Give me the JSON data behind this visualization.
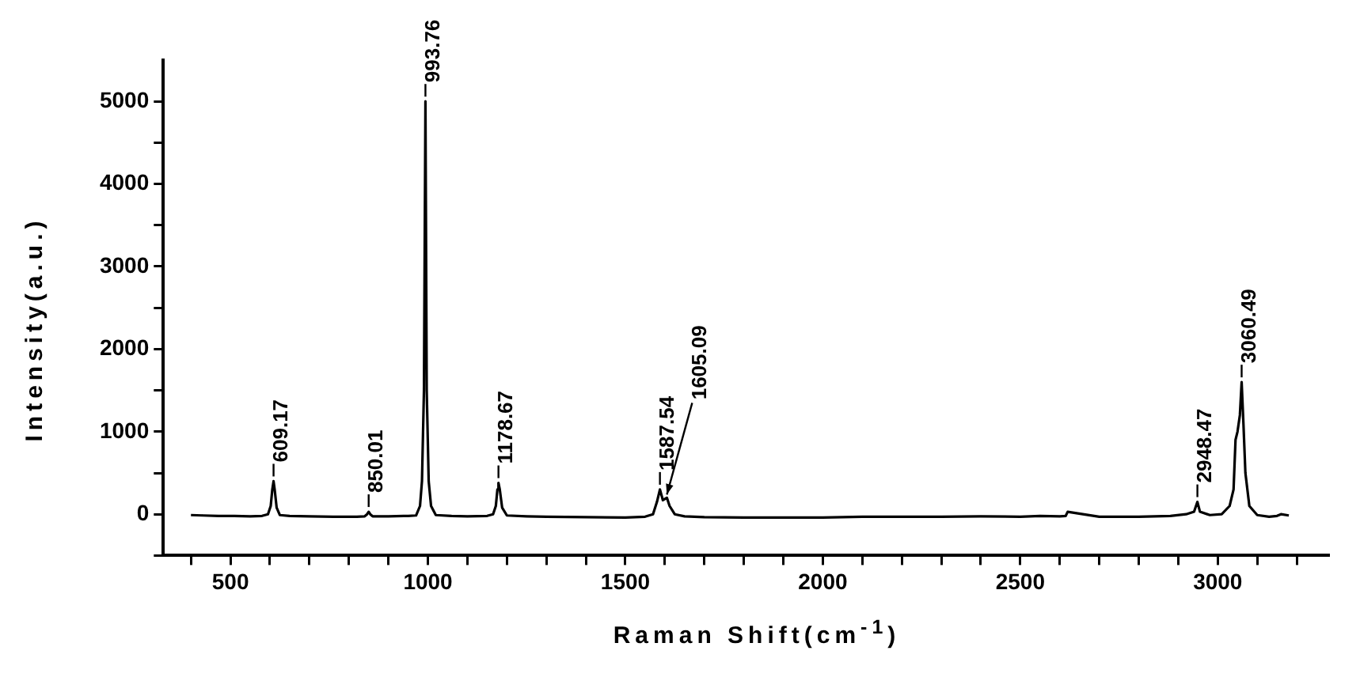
{
  "chart_data": {
    "type": "line",
    "xlabel": "Raman Shift(cm$^{-1}$)",
    "ylabel": "Intensity(a.u.)",
    "xlim": [
      330,
      3280
    ],
    "ylim": [
      -500,
      5500
    ],
    "xticks": [
      {
        "value": 400,
        "label": null
      },
      500,
      {
        "value": 600,
        "label": null
      },
      {
        "value": 700,
        "label": null
      },
      {
        "value": 800,
        "label": null
      },
      {
        "value": 900,
        "label": null
      },
      1000,
      {
        "value": 1100,
        "label": null
      },
      {
        "value": 1200,
        "label": null
      },
      {
        "value": 1300,
        "label": null
      },
      {
        "value": 1400,
        "label": null
      },
      1500,
      {
        "value": 1600,
        "label": null
      },
      {
        "value": 1700,
        "label": null
      },
      {
        "value": 1800,
        "label": null
      },
      {
        "value": 1900,
        "label": null
      },
      2000,
      {
        "value": 2100,
        "label": null
      },
      {
        "value": 2200,
        "label": null
      },
      {
        "value": 2300,
        "label": null
      },
      {
        "value": 2400,
        "label": null
      },
      2500,
      {
        "value": 2600,
        "label": null
      },
      {
        "value": 2700,
        "label": null
      },
      {
        "value": 2800,
        "label": null
      },
      {
        "value": 2900,
        "label": null
      },
      3000,
      {
        "value": 3100,
        "label": null
      },
      {
        "value": 3200,
        "label": null
      }
    ],
    "yticks": [
      {
        "value": -500,
        "label": null
      },
      0,
      {
        "value": 500,
        "label": null
      },
      1000,
      {
        "value": 1500,
        "label": null
      },
      2000,
      {
        "value": 2500,
        "label": null
      },
      3000,
      {
        "value": 3500,
        "label": null
      },
      4000,
      {
        "value": 4500,
        "label": null
      },
      5000
    ],
    "grid": false,
    "legend": false,
    "marker": "none",
    "line_style": "solid",
    "series": [
      {
        "color": "#000000",
        "x": [
          400,
          430,
          470,
          510,
          550,
          580,
          595,
          602,
          606,
          609.17,
          612,
          617,
          625,
          650,
          700,
          760,
          820,
          840,
          846,
          850.01,
          854,
          860,
          900,
          950,
          970,
          980,
          985,
          990,
          993.76,
          997,
          1002,
          1008,
          1020,
          1060,
          1100,
          1150,
          1165,
          1172,
          1176,
          1178.67,
          1182,
          1188,
          1200,
          1250,
          1300,
          1400,
          1500,
          1550,
          1570,
          1580,
          1587.54,
          1595,
          1605.09,
          1612,
          1625,
          1650,
          1700,
          1800,
          1900,
          2000,
          2100,
          2200,
          2300,
          2400,
          2500,
          2550,
          2600,
          2615,
          2620,
          2700,
          2800,
          2880,
          2920,
          2940,
          2948.47,
          2955,
          2980,
          3010,
          3030,
          3040,
          3045,
          3050,
          3056,
          3060.49,
          3065,
          3070,
          3080,
          3100,
          3130,
          3150,
          3160,
          3180
        ],
        "values": [
          -10,
          -15,
          -20,
          -20,
          -25,
          -20,
          0,
          100,
          300,
          400,
          300,
          80,
          -10,
          -20,
          -25,
          -30,
          -30,
          -25,
          0,
          30,
          0,
          -25,
          -25,
          -20,
          -15,
          100,
          400,
          1500,
          5000,
          1500,
          400,
          100,
          -10,
          -20,
          -25,
          -20,
          0,
          100,
          300,
          380,
          300,
          80,
          -15,
          -25,
          -30,
          -35,
          -40,
          -30,
          0,
          150,
          300,
          170,
          200,
          100,
          0,
          -25,
          -35,
          -40,
          -40,
          -40,
          -30,
          -30,
          -30,
          -25,
          -30,
          -20,
          -25,
          -20,
          30,
          -30,
          -30,
          -20,
          0,
          30,
          150,
          30,
          -10,
          0,
          100,
          300,
          900,
          1000,
          1200,
          1600,
          1100,
          500,
          100,
          -10,
          -30,
          -20,
          0,
          -15
        ]
      }
    ],
    "annotations": [
      {
        "text": "609.17",
        "x": 609.17,
        "y": 400
      },
      {
        "text": "850.01",
        "x": 850.01,
        "y": 30
      },
      {
        "text": "993.76",
        "x": 993.76,
        "y": 5000
      },
      {
        "text": "1178.67",
        "x": 1178.67,
        "y": 380
      },
      {
        "text": "1587.54",
        "x": 1587.54,
        "y": 300
      },
      {
        "text": "1605.09",
        "x": 1605.09,
        "y": 200
      },
      {
        "text": "2948.47",
        "x": 2948.47,
        "y": 150
      },
      {
        "text": "3060.49",
        "x": 3060.49,
        "y": 1600
      }
    ]
  }
}
